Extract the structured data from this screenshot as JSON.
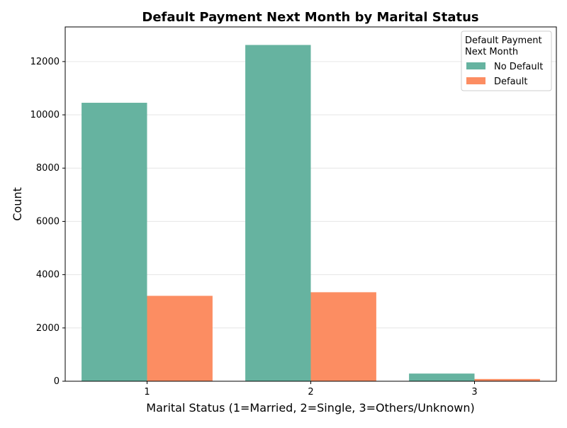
{
  "chart_data": {
    "type": "bar",
    "title": "Default Payment Next Month by Marital Status",
    "xlabel": "Marital Status (1=Married, 2=Single, 3=Others/Unknown)",
    "ylabel": "Count",
    "categories": [
      "1",
      "2",
      "3"
    ],
    "series": [
      {
        "name": "No Default",
        "values": [
          10453,
          12623,
          288
        ],
        "color": "#66b3a0"
      },
      {
        "name": "Default",
        "values": [
          3206,
          3341,
          84
        ],
        "color": "#fc8d62"
      }
    ],
    "ylim": [
      0,
      13300
    ],
    "yticks": [
      0,
      2000,
      4000,
      6000,
      8000,
      10000,
      12000
    ],
    "grid": "y",
    "legend": {
      "title": "Default Payment\nNext Month",
      "placement": "top-right"
    }
  }
}
